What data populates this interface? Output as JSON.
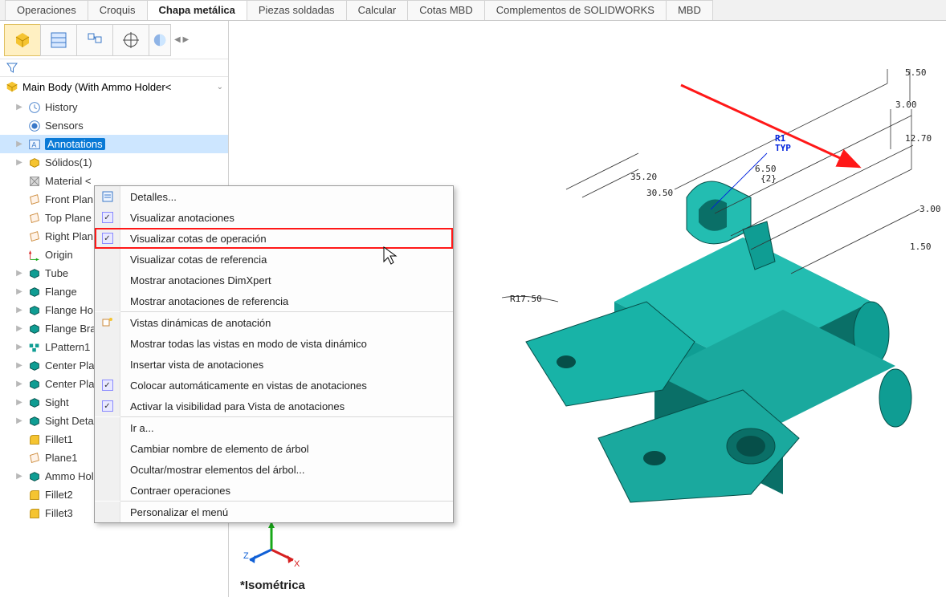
{
  "tabs": {
    "items": [
      "Operaciones",
      "Croquis",
      "Chapa metálica",
      "Piezas soldadas",
      "Calcular",
      "Cotas MBD",
      "Complementos de SOLIDWORKS",
      "MBD"
    ],
    "active_index": 2
  },
  "feature_root": "Main Body  (With Ammo Holder<",
  "tree_items": [
    {
      "label": "History",
      "icon": "history",
      "caret": "▶"
    },
    {
      "label": "Sensors",
      "icon": "sensors",
      "caret": ""
    },
    {
      "label": "Annotations",
      "icon": "annotations",
      "caret": "▶",
      "selected": true
    },
    {
      "label": "Sólidos(1)",
      "icon": "solid",
      "caret": "▶"
    },
    {
      "label": "Material <",
      "icon": "material",
      "caret": ""
    },
    {
      "label": "Front Plan",
      "icon": "plane",
      "caret": ""
    },
    {
      "label": "Top Plane",
      "icon": "plane",
      "caret": ""
    },
    {
      "label": "Right Plan",
      "icon": "plane",
      "caret": ""
    },
    {
      "label": "Origin",
      "icon": "origin",
      "caret": ""
    },
    {
      "label": "Tube",
      "icon": "feature",
      "caret": "▶"
    },
    {
      "label": "Flange",
      "icon": "feature",
      "caret": "▶"
    },
    {
      "label": "Flange Ho",
      "icon": "feature",
      "caret": "▶"
    },
    {
      "label": "Flange Bra",
      "icon": "feature",
      "caret": "▶"
    },
    {
      "label": "LPattern1",
      "icon": "pattern",
      "caret": "▶"
    },
    {
      "label": "Center Pla",
      "icon": "feature",
      "caret": "▶"
    },
    {
      "label": "Center Pla",
      "icon": "feature",
      "caret": "▶"
    },
    {
      "label": "Sight",
      "icon": "feature",
      "caret": "▶"
    },
    {
      "label": "Sight Deta",
      "icon": "feature",
      "caret": "▶"
    },
    {
      "label": "Fillet1",
      "icon": "fillet",
      "caret": ""
    },
    {
      "label": "Plane1",
      "icon": "plane",
      "caret": ""
    },
    {
      "label": "Ammo Holder",
      "icon": "feature",
      "caret": "▶"
    },
    {
      "label": "Fillet2",
      "icon": "fillet",
      "caret": ""
    },
    {
      "label": "Fillet3",
      "icon": "fillet",
      "caret": ""
    }
  ],
  "context_menu": {
    "items": [
      {
        "label": "Detalles...",
        "icon": "details"
      },
      {
        "label": "Visualizar anotaciones",
        "check": true
      },
      {
        "label": "Visualizar cotas de operación",
        "check": true,
        "highlight": true
      },
      {
        "label": "Visualizar cotas de referencia"
      },
      {
        "label": "Mostrar anotaciones DimXpert"
      },
      {
        "label": "Mostrar anotaciones de referencia"
      },
      {
        "sep": true
      },
      {
        "label": "Vistas dinámicas de anotación",
        "icon": "dyn"
      },
      {
        "label": "Mostrar todas las vistas en modo de vista dinámico"
      },
      {
        "label": "Insertar vista de anotaciones"
      },
      {
        "label": "Colocar automáticamente en vistas de anotaciones",
        "check": true
      },
      {
        "label": "Activar la visibilidad para Vista de anotaciones",
        "check": true
      },
      {
        "sep": true
      },
      {
        "label": "Ir a..."
      },
      {
        "label": "Cambiar nombre de elemento de árbol"
      },
      {
        "label": "Ocultar/mostrar elementos del árbol..."
      },
      {
        "label": "Contraer operaciones"
      },
      {
        "sep": true
      },
      {
        "label": "Personalizar el menú"
      }
    ]
  },
  "view_label": "*Isométrica",
  "triad": {
    "axes": [
      "X",
      "Y",
      "Z"
    ],
    "colors": [
      "#d62020",
      "#18a818",
      "#1060d6"
    ]
  },
  "dimensions": {
    "d1": "5.50",
    "d2": "3.00",
    "d3": "12.70",
    "d4": "3.00",
    "d5": "1.50",
    "d6": "6.50",
    "d6b": "{2}",
    "d7": "30.50",
    "d8": "35.20",
    "d9": "R17.50",
    "r_label": "R1",
    "r_sub": "TYP"
  },
  "model_color": "#0f9d93",
  "model_color_dark": "#0a6f67",
  "model_color_light": "#23bdb1",
  "callout_arrow_color": "#ff1818",
  "dim_line_color": "#333333"
}
